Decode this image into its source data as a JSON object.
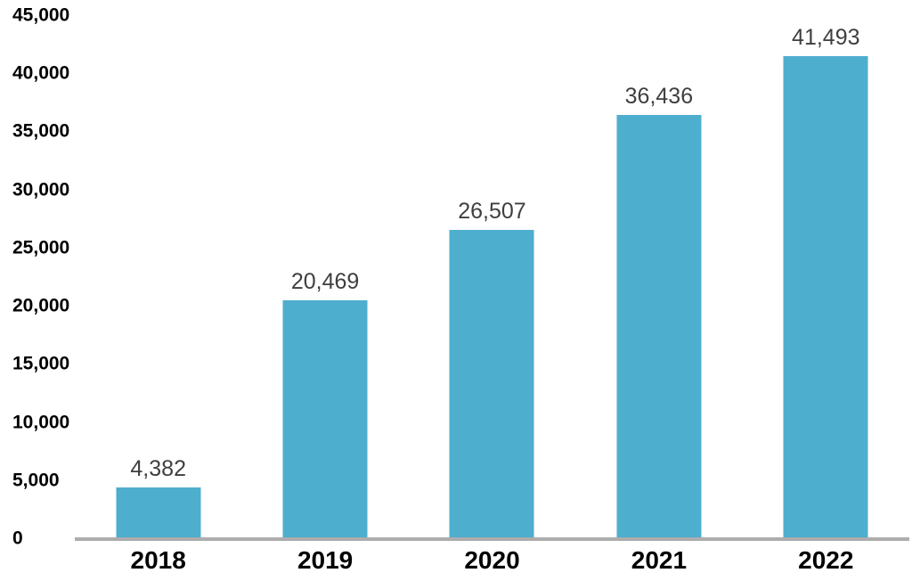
{
  "chart_data": {
    "type": "bar",
    "title": "",
    "xlabel": "",
    "ylabel": "",
    "categories": [
      "2018",
      "2019",
      "2020",
      "2021",
      "2022"
    ],
    "values": [
      4382,
      20469,
      26507,
      36436,
      41493
    ],
    "value_labels": [
      "4,382",
      "20,469",
      "26,507",
      "36,436",
      "41,493"
    ],
    "yticks": [
      0,
      5000,
      10000,
      15000,
      20000,
      25000,
      30000,
      35000,
      40000,
      45000
    ],
    "ytick_labels": [
      "0",
      "5,000",
      "10,000",
      "15,000",
      "20,000",
      "25,000",
      "30,000",
      "35,000",
      "40,000",
      "45,000"
    ],
    "ylim": [
      0,
      45000
    ],
    "grid": false,
    "legend": "none",
    "colors": {
      "bar_fill": "#4EAECE",
      "axis_line": "#ADADAD",
      "data_label": "#3F3F3F",
      "tick_label": "#000000",
      "background": "#FFFFFF"
    }
  }
}
